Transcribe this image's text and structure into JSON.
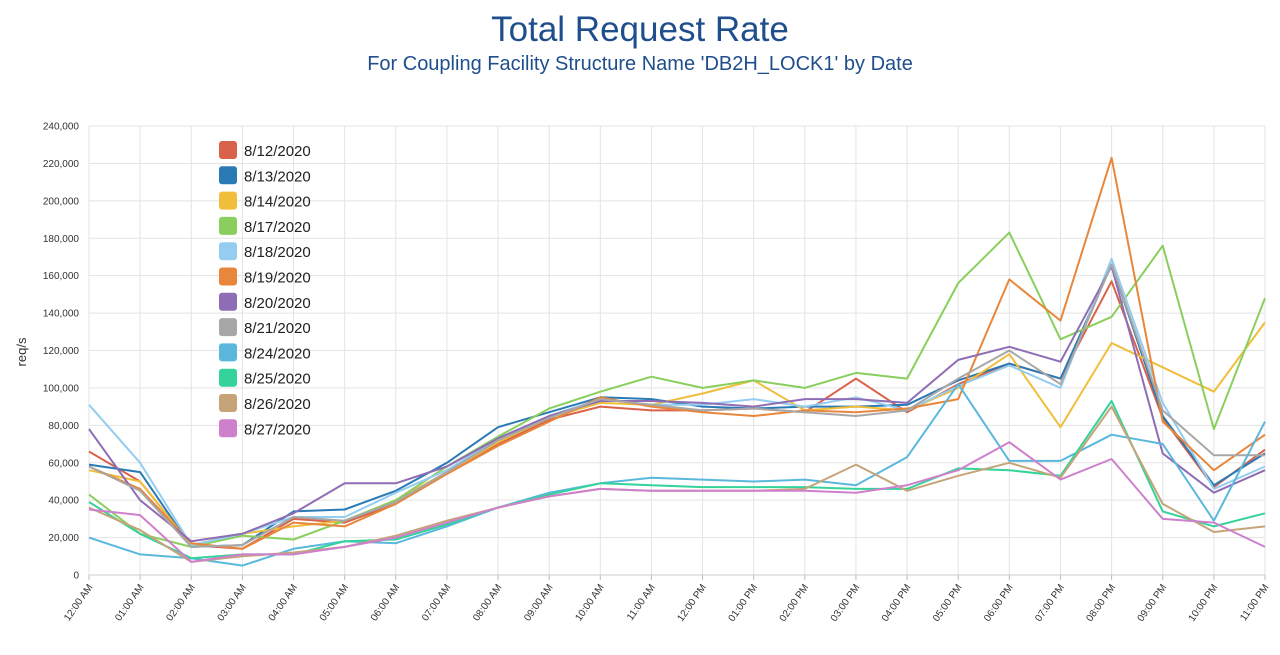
{
  "chart_data": {
    "type": "line",
    "title": "Total Request Rate",
    "subtitle": "For Coupling Facility Structure Name 'DB2H_LOCK1' by Date",
    "ylabel": "req/s",
    "xlabel": "",
    "ylim": [
      0,
      240000
    ],
    "yticks": [
      0,
      20000,
      40000,
      60000,
      80000,
      100000,
      120000,
      140000,
      160000,
      180000,
      200000,
      220000,
      240000
    ],
    "ytick_labels": [
      "0",
      "20,000",
      "40,000",
      "60,000",
      "80,000",
      "100,000",
      "120,000",
      "140,000",
      "160,000",
      "180,000",
      "200,000",
      "220,000",
      "240,000"
    ],
    "grid": true,
    "legend_position": "top-left",
    "x": [
      "12:00 AM",
      "01:00 AM",
      "02:00 AM",
      "03:00 AM",
      "04:00 AM",
      "05:00 AM",
      "06:00 AM",
      "07:00 AM",
      "08:00 AM",
      "09:00 AM",
      "10:00 AM",
      "11:00 AM",
      "12:00 PM",
      "01:00 PM",
      "02:00 PM",
      "03:00 PM",
      "04:00 PM",
      "05:00 PM",
      "06:00 PM",
      "07:00 PM",
      "08:00 PM",
      "09:00 PM",
      "10:00 PM",
      "11:00 PM"
    ],
    "series": [
      {
        "name": "8/12/2020",
        "color": "#d9624a",
        "values": [
          66000,
          50000,
          16000,
          14000,
          30000,
          28000,
          38000,
          55000,
          70000,
          83000,
          90000,
          88000,
          88000,
          89000,
          87000,
          105000,
          87000,
          102000,
          113000,
          105000,
          157000,
          84000,
          47000,
          67000
        ]
      },
      {
        "name": "8/13/2020",
        "color": "#2a7ab5",
        "values": [
          59000,
          55000,
          15000,
          16000,
          34000,
          35000,
          45000,
          60000,
          79000,
          87000,
          95000,
          94000,
          90000,
          89000,
          90000,
          90000,
          91000,
          104000,
          113000,
          105000,
          166000,
          85000,
          48000,
          65000
        ]
      },
      {
        "name": "8/14/2020",
        "color": "#f0be3a",
        "values": [
          56000,
          50000,
          16000,
          22000,
          26000,
          29000,
          40000,
          55000,
          71000,
          84000,
          92000,
          91000,
          97000,
          104000,
          88000,
          90000,
          88000,
          100000,
          118000,
          79000,
          124000,
          111000,
          98000,
          135000
        ]
      },
      {
        "name": "8/17/2020",
        "color": "#8acf5e",
        "values": [
          43000,
          22000,
          15000,
          21000,
          19000,
          29000,
          40000,
          58000,
          74000,
          89000,
          98000,
          106000,
          100000,
          104000,
          100000,
          108000,
          105000,
          156000,
          183000,
          126000,
          138000,
          176000,
          78000,
          148000
        ]
      },
      {
        "name": "8/18/2020",
        "color": "#94cdf0",
        "values": [
          91000,
          60000,
          16000,
          22000,
          31000,
          31000,
          44000,
          56000,
          73000,
          85000,
          94000,
          91000,
          91000,
          94000,
          90000,
          95000,
          88000,
          101000,
          112000,
          100000,
          169000,
          92000,
          46000,
          58000
        ]
      },
      {
        "name": "8/19/2020",
        "color": "#e8873c",
        "values": [
          58000,
          46000,
          17000,
          14000,
          28000,
          26000,
          38000,
          54000,
          69000,
          82000,
          95000,
          90000,
          87000,
          85000,
          88000,
          87000,
          89000,
          94000,
          158000,
          136000,
          223000,
          82000,
          56000,
          75000
        ]
      },
      {
        "name": "8/20/2020",
        "color": "#8f6db5",
        "values": [
          78000,
          40000,
          18000,
          22000,
          33000,
          49000,
          49000,
          58000,
          73000,
          85000,
          93000,
          93000,
          92000,
          90000,
          94000,
          94000,
          92000,
          115000,
          122000,
          114000,
          165000,
          65000,
          44000,
          56000
        ]
      },
      {
        "name": "8/21/2020",
        "color": "#a7a7a7",
        "values": [
          58000,
          45000,
          15000,
          16000,
          31000,
          29000,
          39000,
          55000,
          72000,
          84000,
          94000,
          91000,
          88000,
          89000,
          87000,
          85000,
          88000,
          105000,
          120000,
          102000,
          166000,
          88000,
          64000,
          64000
        ]
      },
      {
        "name": "8/24/2020",
        "color": "#5ab8dc",
        "values": [
          20000,
          11000,
          9000,
          5000,
          14000,
          18000,
          17000,
          26000,
          36000,
          44000,
          49000,
          52000,
          51000,
          50000,
          51000,
          48000,
          63000,
          102000,
          61000,
          61000,
          75000,
          70000,
          29000,
          82000
        ]
      },
      {
        "name": "8/25/2020",
        "color": "#34d39a",
        "values": [
          39000,
          22000,
          9000,
          11000,
          11000,
          18000,
          19000,
          27000,
          36000,
          43000,
          49000,
          48000,
          47000,
          47000,
          47000,
          46000,
          46000,
          57000,
          56000,
          53000,
          93000,
          34000,
          26000,
          33000
        ]
      },
      {
        "name": "8/26/2020",
        "color": "#c6a47a",
        "values": [
          36000,
          24000,
          7000,
          10000,
          12000,
          15000,
          21000,
          29000,
          36000,
          42000,
          46000,
          45000,
          45000,
          45000,
          46000,
          59000,
          45000,
          53000,
          60000,
          52000,
          90000,
          38000,
          23000,
          26000
        ]
      },
      {
        "name": "8/27/2020",
        "color": "#cf80cc",
        "values": [
          35000,
          32000,
          7000,
          11000,
          11000,
          15000,
          20000,
          28000,
          36000,
          42000,
          46000,
          45000,
          45000,
          45000,
          45000,
          44000,
          48000,
          56000,
          71000,
          51000,
          62000,
          30000,
          28000,
          15000
        ]
      }
    ]
  }
}
